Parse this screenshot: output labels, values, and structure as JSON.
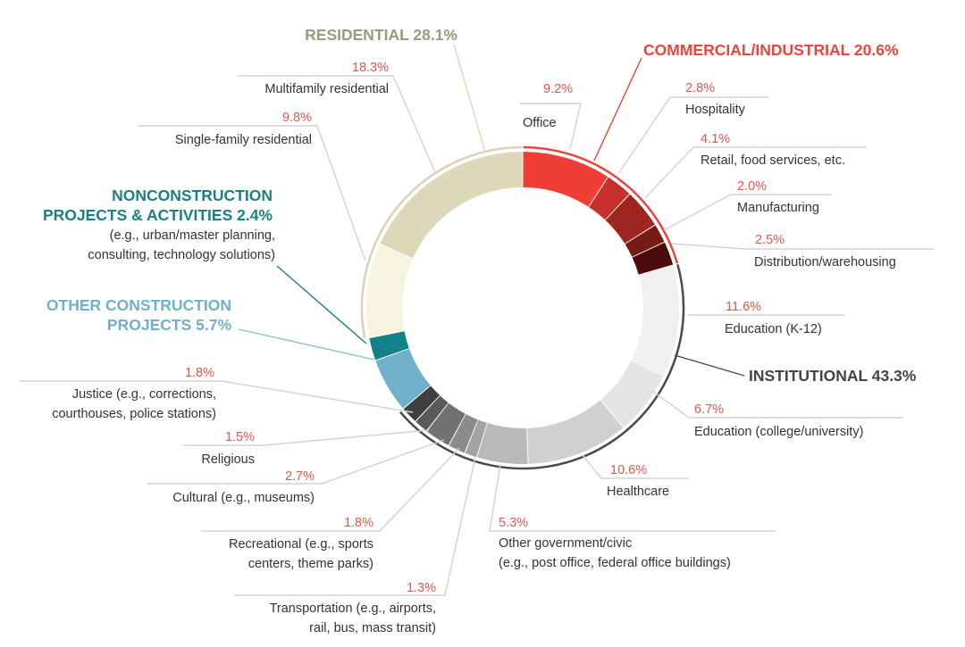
{
  "chart_data": {
    "type": "pie",
    "style": "donut",
    "groups": [
      {
        "key": "commercial",
        "label": "COMMERCIAL/INDUSTRIAL 20.6%",
        "value": 20.6,
        "color": "#e8453c"
      },
      {
        "key": "institutional",
        "label": "INSTITUTIONAL 43.3%",
        "value": 43.3,
        "color": "#444444"
      },
      {
        "key": "other_construction",
        "label": "OTHER CONSTRUCTION PROJECTS 5.7%",
        "label_lines": [
          "OTHER CONSTRUCTION",
          "PROJECTS 5.7%"
        ],
        "value": 5.7,
        "color": "#6fb1c8"
      },
      {
        "key": "nonconstruction",
        "label": "NONCONSTRUCTION PROJECTS & ACTIVITIES 2.4%",
        "label_lines": [
          "NONCONSTRUCTION",
          "PROJECTS & ACTIVITIES 2.4%"
        ],
        "value": 2.4,
        "color": "#1b7f84"
      },
      {
        "key": "residential",
        "label": "RESIDENTIAL 28.1%",
        "value": 28.1,
        "color": "#9b9a7d"
      }
    ],
    "nonconstruction_note": [
      "(e.g., urban/master planning,",
      "consulting, technology solutions)"
    ],
    "slices": [
      {
        "group": "commercial",
        "label": [
          "Office"
        ],
        "pct_label": "9.2%",
        "value": 9.2,
        "color": "#ef3e36"
      },
      {
        "group": "commercial",
        "label": [
          "Hospitality"
        ],
        "pct_label": "2.8%",
        "value": 2.8,
        "color": "#c9302c"
      },
      {
        "group": "commercial",
        "label": [
          "Retail, food services, etc."
        ],
        "pct_label": "4.1%",
        "value": 4.1,
        "color": "#9f2620"
      },
      {
        "group": "commercial",
        "label": [
          "Manufacturing"
        ],
        "pct_label": "2.0%",
        "value": 2.0,
        "color": "#781a15"
      },
      {
        "group": "commercial",
        "label": [
          "Distribution/warehousing"
        ],
        "pct_label": "2.5%",
        "value": 2.5,
        "color": "#4d0c09"
      },
      {
        "group": "institutional",
        "label": [
          "Education (K-12)"
        ],
        "pct_label": "11.6%",
        "value": 11.6,
        "color": "#f0f0f0"
      },
      {
        "group": "institutional",
        "label": [
          "Education (college/university)"
        ],
        "pct_label": "6.7%",
        "value": 6.7,
        "color": "#e4e4e4"
      },
      {
        "group": "institutional",
        "label": [
          "Healthcare"
        ],
        "pct_label": "10.6%",
        "value": 10.6,
        "color": "#d0d0d0"
      },
      {
        "group": "institutional",
        "label": [
          "Other government/civic",
          "(e.g., post office, federal office buildings)"
        ],
        "pct_label": "5.3%",
        "value": 5.3,
        "color": "#b9b9b9"
      },
      {
        "group": "institutional",
        "label": [
          "Transportation (e.g., airports,",
          "rail, bus, mass transit)"
        ],
        "pct_label": "1.3%",
        "value": 1.3,
        "color": "#a3a3a3"
      },
      {
        "group": "institutional",
        "label": [
          "Recreational (e.g., sports",
          "centers, theme parks)"
        ],
        "pct_label": "1.8%",
        "value": 1.8,
        "color": "#8b8b8b"
      },
      {
        "group": "institutional",
        "label": [
          "Cultural (e.g., museums)"
        ],
        "pct_label": "2.7%",
        "value": 2.7,
        "color": "#727272"
      },
      {
        "group": "institutional",
        "label": [
          "Religious"
        ],
        "pct_label": "1.5%",
        "value": 1.5,
        "color": "#5a5a5a"
      },
      {
        "group": "institutional",
        "label": [
          "Justice (e.g., corrections,",
          "courthouses, police stations)"
        ],
        "pct_label": "1.8%",
        "value": 1.8,
        "color": "#3f3f3f"
      },
      {
        "group": "other_construction",
        "label": [],
        "pct_label": "",
        "value": 5.7,
        "color": "#6fb1c8"
      },
      {
        "group": "nonconstruction",
        "label": [],
        "pct_label": "",
        "value": 2.4,
        "color": "#11818a"
      },
      {
        "group": "residential",
        "label": [
          "Single-family residential"
        ],
        "pct_label": "9.8%",
        "value": 9.8,
        "color": "#f6f3df"
      },
      {
        "group": "residential",
        "label": [
          "Multifamily residential"
        ],
        "pct_label": "18.3%",
        "value": 18.3,
        "color": "#ddd8b9"
      }
    ]
  }
}
